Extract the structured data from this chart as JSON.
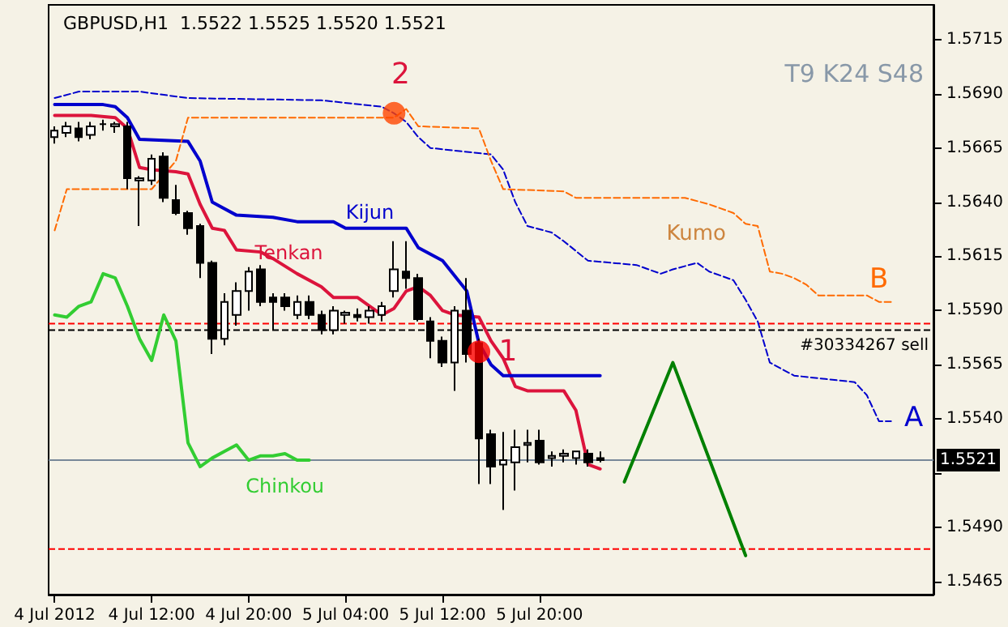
{
  "chart_data": {
    "type": "candlestick",
    "title": "GBPUSD,H1  1.5522 1.5525 1.5520 1.5521",
    "annotations": [
      "T9 K24 S48",
      "Kumo",
      {
        "text": "1",
        "x": "2012-07-05T15:00",
        "y": 1.5571
      },
      {
        "text": "2",
        "x": "2012-07-05T08:00",
        "y": 1.5681
      }
    ],
    "xlim": [
      "2012-07-04T03:30",
      "2012-07-07T04:30"
    ],
    "xticks": [
      {
        "value": "2012-07-04T04:00",
        "label": "4 Jul 2012"
      },
      {
        "value": "2012-07-04T12:00",
        "label": "4 Jul 12:00"
      },
      {
        "value": "2012-07-04T20:00",
        "label": "4 Jul 20:00"
      },
      {
        "value": "2012-07-05T04:00",
        "label": "5 Jul 04:00"
      },
      {
        "value": "2012-07-05T12:00",
        "label": "5 Jul 12:00"
      },
      {
        "value": "2012-07-05T20:00",
        "label": "5 Jul 20:00"
      }
    ],
    "ylim": [
      1.5459,
      1.5731
    ],
    "yticks": [
      1.5715,
      {
        "value": 1.569,
        "label": "1.5690"
      },
      1.5665,
      {
        "value": 1.564,
        "label": "1.5640"
      },
      1.5615,
      {
        "value": 1.559,
        "label": "1.5590"
      },
      1.5565,
      {
        "value": 1.554,
        "label": "1.5540"
      },
      {
        "value": 1.5515,
        "label": null
      },
      {
        "value": 1.549,
        "label": "1.5490"
      },
      1.5465
    ],
    "grid": false,
    "legend": false,
    "ref_lines": [
      {
        "axis": "y",
        "value": 1.5521,
        "label": "1.5521",
        "color": "#778899"
      },
      {
        "axis": "y",
        "value": 1.5581,
        "label": "#30334267 sell",
        "color": "#000000",
        "line_style": "dashed"
      },
      {
        "axis": "y",
        "value": 1.5584,
        "color": "#ff0000",
        "line_style": "dashed"
      },
      {
        "axis": "y",
        "value": 1.548,
        "color": "#ff0000",
        "line_style": "dashed"
      }
    ],
    "series": [
      {
        "x": [
          "2012-07-04T04:00",
          "2012-07-04T05:00",
          "2012-07-04T06:00",
          "2012-07-04T07:00",
          "2012-07-04T08:00",
          "2012-07-04T09:00",
          "2012-07-04T10:00",
          "2012-07-04T11:00",
          "2012-07-04T12:00",
          "2012-07-04T13:00",
          "2012-07-04T14:00",
          "2012-07-04T15:00",
          "2012-07-04T16:00",
          "2012-07-04T17:00",
          "2012-07-04T18:00",
          "2012-07-04T19:00",
          "2012-07-04T20:00",
          "2012-07-04T21:00",
          "2012-07-04T22:00",
          "2012-07-04T23:00",
          "2012-07-05T00:00",
          "2012-07-05T01:00",
          "2012-07-05T02:00",
          "2012-07-05T03:00",
          "2012-07-05T04:00",
          "2012-07-05T05:00",
          "2012-07-05T06:00",
          "2012-07-05T07:00",
          "2012-07-05T08:00",
          "2012-07-05T09:00",
          "2012-07-05T10:00",
          "2012-07-05T11:00",
          "2012-07-05T12:00",
          "2012-07-05T13:00",
          "2012-07-05T14:00",
          "2012-07-05T15:00",
          "2012-07-05T16:00",
          "2012-07-05T17:00",
          "2012-07-05T18:00",
          "2012-07-05T19:00",
          "2012-07-05T20:00",
          "2012-07-05T21:00",
          "2012-07-05T22:00",
          "2012-07-05T23:00",
          "2012-07-06T00:00",
          "2012-07-06T01:00"
        ],
        "ohlc": [
          [
            1.567,
            1.5675,
            1.5667,
            1.5673
          ],
          [
            1.5672,
            1.5677,
            1.567,
            1.5675
          ],
          [
            1.5674,
            1.5677,
            1.5668,
            1.567
          ],
          [
            1.5671,
            1.5677,
            1.5669,
            1.5675
          ],
          [
            1.5676,
            1.5678,
            1.5673,
            1.5676
          ],
          [
            1.5675,
            1.5677,
            1.5672,
            1.5676
          ],
          [
            1.5675,
            1.5677,
            1.5646,
            1.5651
          ],
          [
            1.565,
            1.5652,
            1.5629,
            1.5651
          ],
          [
            1.565,
            1.5662,
            1.5648,
            1.566
          ],
          [
            1.5661,
            1.5663,
            1.564,
            1.5642
          ],
          [
            1.5641,
            1.5648,
            1.5634,
            1.5635
          ],
          [
            1.5635,
            1.5636,
            1.5625,
            1.5628
          ],
          [
            1.5629,
            1.563,
            1.5605,
            1.5612
          ],
          [
            1.5612,
            1.5613,
            1.557,
            1.5577
          ],
          [
            1.5577,
            1.5598,
            1.5574,
            1.5594
          ],
          [
            1.5588,
            1.5603,
            1.5583,
            1.5599
          ],
          [
            1.5599,
            1.561,
            1.559,
            1.5608
          ],
          [
            1.5609,
            1.5611,
            1.5592,
            1.5594
          ],
          [
            1.5596,
            1.5598,
            1.5581,
            1.5594
          ],
          [
            1.5596,
            1.5598,
            1.559,
            1.5592
          ],
          [
            1.5588,
            1.5597,
            1.5586,
            1.5594
          ],
          [
            1.5594,
            1.5597,
            1.5586,
            1.5588
          ],
          [
            1.5588,
            1.559,
            1.5579,
            1.5581
          ],
          [
            1.5581,
            1.5592,
            1.5579,
            1.559
          ],
          [
            1.5588,
            1.559,
            1.5584,
            1.5589
          ],
          [
            1.5588,
            1.5591,
            1.5585,
            1.5587
          ],
          [
            1.5587,
            1.5592,
            1.5584,
            1.559
          ],
          [
            1.5588,
            1.5594,
            1.5585,
            1.5592
          ],
          [
            1.5599,
            1.5622,
            1.5596,
            1.5609
          ],
          [
            1.5608,
            1.5622,
            1.56,
            1.5605
          ],
          [
            1.5605,
            1.5607,
            1.5585,
            1.5586
          ],
          [
            1.5585,
            1.5587,
            1.5568,
            1.5576
          ],
          [
            1.5576,
            1.5578,
            1.5564,
            1.5566
          ],
          [
            1.5566,
            1.5592,
            1.5553,
            1.559
          ],
          [
            1.559,
            1.5605,
            1.5566,
            1.557
          ],
          [
            1.5575,
            1.5577,
            1.551,
            1.5531
          ],
          [
            1.5533,
            1.5535,
            1.551,
            1.5518
          ],
          [
            1.5519,
            1.5534,
            1.5498,
            1.5521
          ],
          [
            1.552,
            1.5535,
            1.5507,
            1.5527
          ],
          [
            1.5528,
            1.5535,
            1.552,
            1.5529
          ],
          [
            1.553,
            1.5535,
            1.5519,
            1.552
          ],
          [
            1.5522,
            1.5525,
            1.5518,
            1.5523
          ],
          [
            1.5523,
            1.5526,
            1.552,
            1.5524
          ],
          [
            1.5522,
            1.5525,
            1.5519,
            1.5525
          ],
          [
            1.5524,
            1.5526,
            1.5518,
            1.552
          ],
          [
            1.5522,
            1.5525,
            1.552,
            1.5521
          ]
        ]
      },
      {
        "type": "line",
        "name": "Tenkan",
        "color": "#dc143c",
        "x": [
          "2012-07-04T04:00",
          "2012-07-04T07:00",
          "2012-07-04T09:00",
          "2012-07-04T10:00",
          "2012-07-04T11:00",
          "2012-07-04T12:00",
          "2012-07-04T14:00",
          "2012-07-04T15:00",
          "2012-07-04T16:00",
          "2012-07-04T17:00",
          "2012-07-04T18:00",
          "2012-07-04T19:00",
          "2012-07-04T21:00",
          "2012-07-04T22:00",
          "2012-07-05T00:00",
          "2012-07-05T02:00",
          "2012-07-05T03:00",
          "2012-07-05T05:00",
          "2012-07-05T06:00",
          "2012-07-05T07:00",
          "2012-07-05T08:00",
          "2012-07-05T09:00",
          "2012-07-05T10:00",
          "2012-07-05T11:00",
          "2012-07-05T12:00",
          "2012-07-05T13:00",
          "2012-07-05T15:00",
          "2012-07-05T16:00",
          "2012-07-05T17:00",
          "2012-07-05T18:00",
          "2012-07-05T19:00",
          "2012-07-05T22:00",
          "2012-07-05T23:00",
          "2012-07-06T00:00",
          "2012-07-06T01:00"
        ],
        "values": [
          1.568,
          1.568,
          1.5679,
          1.5674,
          1.5656,
          1.5655,
          1.5654,
          1.5653,
          1.5639,
          1.5628,
          1.5627,
          1.5618,
          1.5617,
          1.5614,
          1.5607,
          1.5601,
          1.5596,
          1.5596,
          1.5592,
          1.5588,
          1.5591,
          1.5599,
          1.5601,
          1.5597,
          1.559,
          1.5588,
          1.5587,
          1.5576,
          1.5568,
          1.5555,
          1.5553,
          1.5553,
          1.5544,
          1.5519,
          1.5517
        ]
      },
      {
        "type": "line",
        "name": "Kijun",
        "color": "#0000cd",
        "x": [
          "2012-07-04T04:00",
          "2012-07-04T08:00",
          "2012-07-04T09:00",
          "2012-07-04T10:00",
          "2012-07-04T11:00",
          "2012-07-04T15:00",
          "2012-07-04T16:00",
          "2012-07-04T17:00",
          "2012-07-04T19:00",
          "2012-07-04T22:00",
          "2012-07-05T00:00",
          "2012-07-05T03:00",
          "2012-07-05T04:00",
          "2012-07-05T09:00",
          "2012-07-05T10:00",
          "2012-07-05T12:00",
          "2012-07-05T14:00",
          "2012-07-05T15:00",
          "2012-07-05T16:00",
          "2012-07-05T17:00",
          "2012-07-06T01:00"
        ],
        "values": [
          1.5685,
          1.5685,
          1.5684,
          1.5679,
          1.5669,
          1.5668,
          1.5659,
          1.564,
          1.5634,
          1.5633,
          1.5631,
          1.5631,
          1.5628,
          1.5628,
          1.5619,
          1.5613,
          1.5599,
          1.5575,
          1.5565,
          1.556,
          1.556
        ]
      },
      {
        "type": "line",
        "name": "Chinkou",
        "color": "#32cd32",
        "x": [
          "2012-07-04T04:00",
          "2012-07-04T05:00",
          "2012-07-04T06:00",
          "2012-07-04T07:00",
          "2012-07-04T08:00",
          "2012-07-04T09:00",
          "2012-07-04T10:00",
          "2012-07-04T11:00",
          "2012-07-04T12:00",
          "2012-07-04T13:00",
          "2012-07-04T14:00",
          "2012-07-04T15:00",
          "2012-07-04T16:00",
          "2012-07-04T17:00",
          "2012-07-04T18:00",
          "2012-07-04T19:00",
          "2012-07-04T20:00",
          "2012-07-04T21:00",
          "2012-07-04T22:00",
          "2012-07-04T23:00",
          "2012-07-05T00:00",
          "2012-07-05T01:00"
        ],
        "values": [
          1.5588,
          1.5587,
          1.5592,
          1.5594,
          1.5607,
          1.5605,
          1.5592,
          1.5577,
          1.5567,
          1.5588,
          1.5576,
          1.5529,
          1.5518,
          1.5522,
          1.5525,
          1.5528,
          1.5521,
          1.5523,
          1.5523,
          1.5524,
          1.5521,
          1.5521
        ]
      },
      {
        "type": "line",
        "name": "A",
        "color": "#0000cd",
        "line_style": "dashed",
        "x": [
          "2012-07-04T04:00",
          "2012-07-04T06:00",
          "2012-07-04T11:00",
          "2012-07-04T15:00",
          "2012-07-05T02:00",
          "2012-07-05T07:00",
          "2012-07-05T08:00",
          "2012-07-05T09:00",
          "2012-07-05T10:00",
          "2012-07-05T11:00",
          "2012-07-05T16:00",
          "2012-07-05T17:00",
          "2012-07-05T18:00",
          "2012-07-05T19:00",
          "2012-07-05T21:00",
          "2012-07-05T22:00",
          "2012-07-06T00:00",
          "2012-07-06T04:00",
          "2012-07-06T06:00",
          "2012-07-06T07:00",
          "2012-07-06T09:00",
          "2012-07-06T10:00",
          "2012-07-06T12:00",
          "2012-07-06T13:00",
          "2012-07-06T14:00",
          "2012-07-06T15:00",
          "2012-07-06T16:00",
          "2012-07-06T17:00",
          "2012-07-06T22:00",
          "2012-07-06T23:00",
          "2012-07-07T00:00",
          "2012-07-07T01:00"
        ],
        "values": [
          1.5688,
          1.5691,
          1.5691,
          1.5688,
          1.5687,
          1.5684,
          1.5681,
          1.5677,
          1.567,
          1.5665,
          1.5662,
          1.5655,
          1.564,
          1.5629,
          1.5626,
          1.5622,
          1.5613,
          1.5611,
          1.5607,
          1.5609,
          1.5612,
          1.5608,
          1.5604,
          1.5595,
          1.5585,
          1.5566,
          1.5563,
          1.556,
          1.5557,
          1.5551,
          1.5539,
          1.5539
        ]
      },
      {
        "type": "line",
        "name": "B",
        "color": "#ff6a00",
        "line_style": "dashed",
        "x": [
          "2012-07-04T04:00",
          "2012-07-04T05:00",
          "2012-07-04T12:00",
          "2012-07-04T14:00",
          "2012-07-04T15:00",
          "2012-07-05T08:00",
          "2012-07-05T09:00",
          "2012-07-05T10:00",
          "2012-07-05T15:00",
          "2012-07-05T16:00",
          "2012-07-05T17:00",
          "2012-07-05T22:00",
          "2012-07-05T23:00",
          "2012-07-06T08:00",
          "2012-07-06T10:00",
          "2012-07-06T12:00",
          "2012-07-06T13:00",
          "2012-07-06T14:00",
          "2012-07-06T15:00",
          "2012-07-06T16:00",
          "2012-07-06T17:00",
          "2012-07-06T18:00",
          "2012-07-06T19:00",
          "2012-07-06T23:00",
          "2012-07-07T00:00",
          "2012-07-07T01:00"
        ],
        "values": [
          1.5627,
          1.5646,
          1.5646,
          1.5659,
          1.5679,
          1.5679,
          1.5683,
          1.5675,
          1.5674,
          1.5659,
          1.5646,
          1.5645,
          1.5642,
          1.5642,
          1.5639,
          1.5635,
          1.563,
          1.5629,
          1.5608,
          1.5607,
          1.5605,
          1.5602,
          1.5597,
          1.5597,
          1.5594,
          1.5594
        ]
      },
      {
        "type": "scatter",
        "marker": "circle",
        "x": [
          "2012-07-05T15:00",
          "2012-07-05T08:00"
        ],
        "values": [
          1.5571,
          1.5681
        ],
        "colors": [
          "#ff0000",
          "#ff4500"
        ]
      },
      {
        "type": "line",
        "color": "#008000",
        "x": [
          "2012-07-06T03:00",
          "2012-07-06T07:00",
          "2012-07-06T13:00"
        ],
        "values": [
          1.5511,
          1.5566,
          1.5477
        ]
      }
    ]
  }
}
